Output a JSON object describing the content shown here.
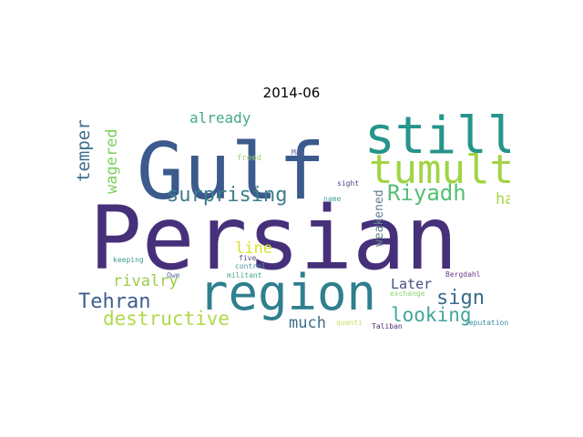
{
  "title": "2014-06",
  "words": [
    {
      "text": "Persian",
      "color": "#46307a"
    },
    {
      "text": "Gulf",
      "color": "#3b5a8d"
    },
    {
      "text": "still",
      "color": "#26958b"
    },
    {
      "text": "tumult",
      "color": "#a1d443"
    },
    {
      "text": "region",
      "color": "#2f7f8e"
    },
    {
      "text": "surprising",
      "color": "#3c7e8c"
    },
    {
      "text": "Riyadh",
      "color": "#55bf74"
    },
    {
      "text": "temper",
      "color": "#3d6d8b"
    },
    {
      "text": "wagered",
      "color": "#7ecf5d"
    },
    {
      "text": "already",
      "color": "#46a78d"
    },
    {
      "text": "ha",
      "color": "#a8d642"
    },
    {
      "text": "line",
      "color": "#d8e126"
    },
    {
      "text": "weakened",
      "color": "#5f7f8f"
    },
    {
      "text": "rivalry",
      "color": "#9ccd4b"
    },
    {
      "text": "Tehran",
      "color": "#3f5f8e"
    },
    {
      "text": "Later",
      "color": "#474f85"
    },
    {
      "text": "sign",
      "color": "#3b6b8b"
    },
    {
      "text": "looking",
      "color": "#42a59b"
    },
    {
      "text": "destructive",
      "color": "#b1d94a"
    },
    {
      "text": "much",
      "color": "#3b6f8c"
    },
    {
      "text": "May",
      "color": "#6a5e9a"
    },
    {
      "text": "freed",
      "color": "#9fd473"
    },
    {
      "text": "sight",
      "color": "#5a3f84"
    },
    {
      "text": "name",
      "color": "#46a7a0"
    },
    {
      "text": "five",
      "color": "#4c4c86"
    },
    {
      "text": "keeping",
      "color": "#3d9f8a"
    },
    {
      "text": "control",
      "color": "#4a99a5"
    },
    {
      "text": "militant",
      "color": "#46a58d"
    },
    {
      "text": "Owe",
      "color": "#5b6f9b"
    },
    {
      "text": "Bergdahl",
      "color": "#6a3d8a"
    },
    {
      "text": "exchange",
      "color": "#8fd46b"
    },
    {
      "text": "quanti",
      "color": "#c9e261"
    },
    {
      "text": "Taliban",
      "color": "#4b2f73"
    },
    {
      "text": "reputation",
      "color": "#3c8da0"
    }
  ]
}
